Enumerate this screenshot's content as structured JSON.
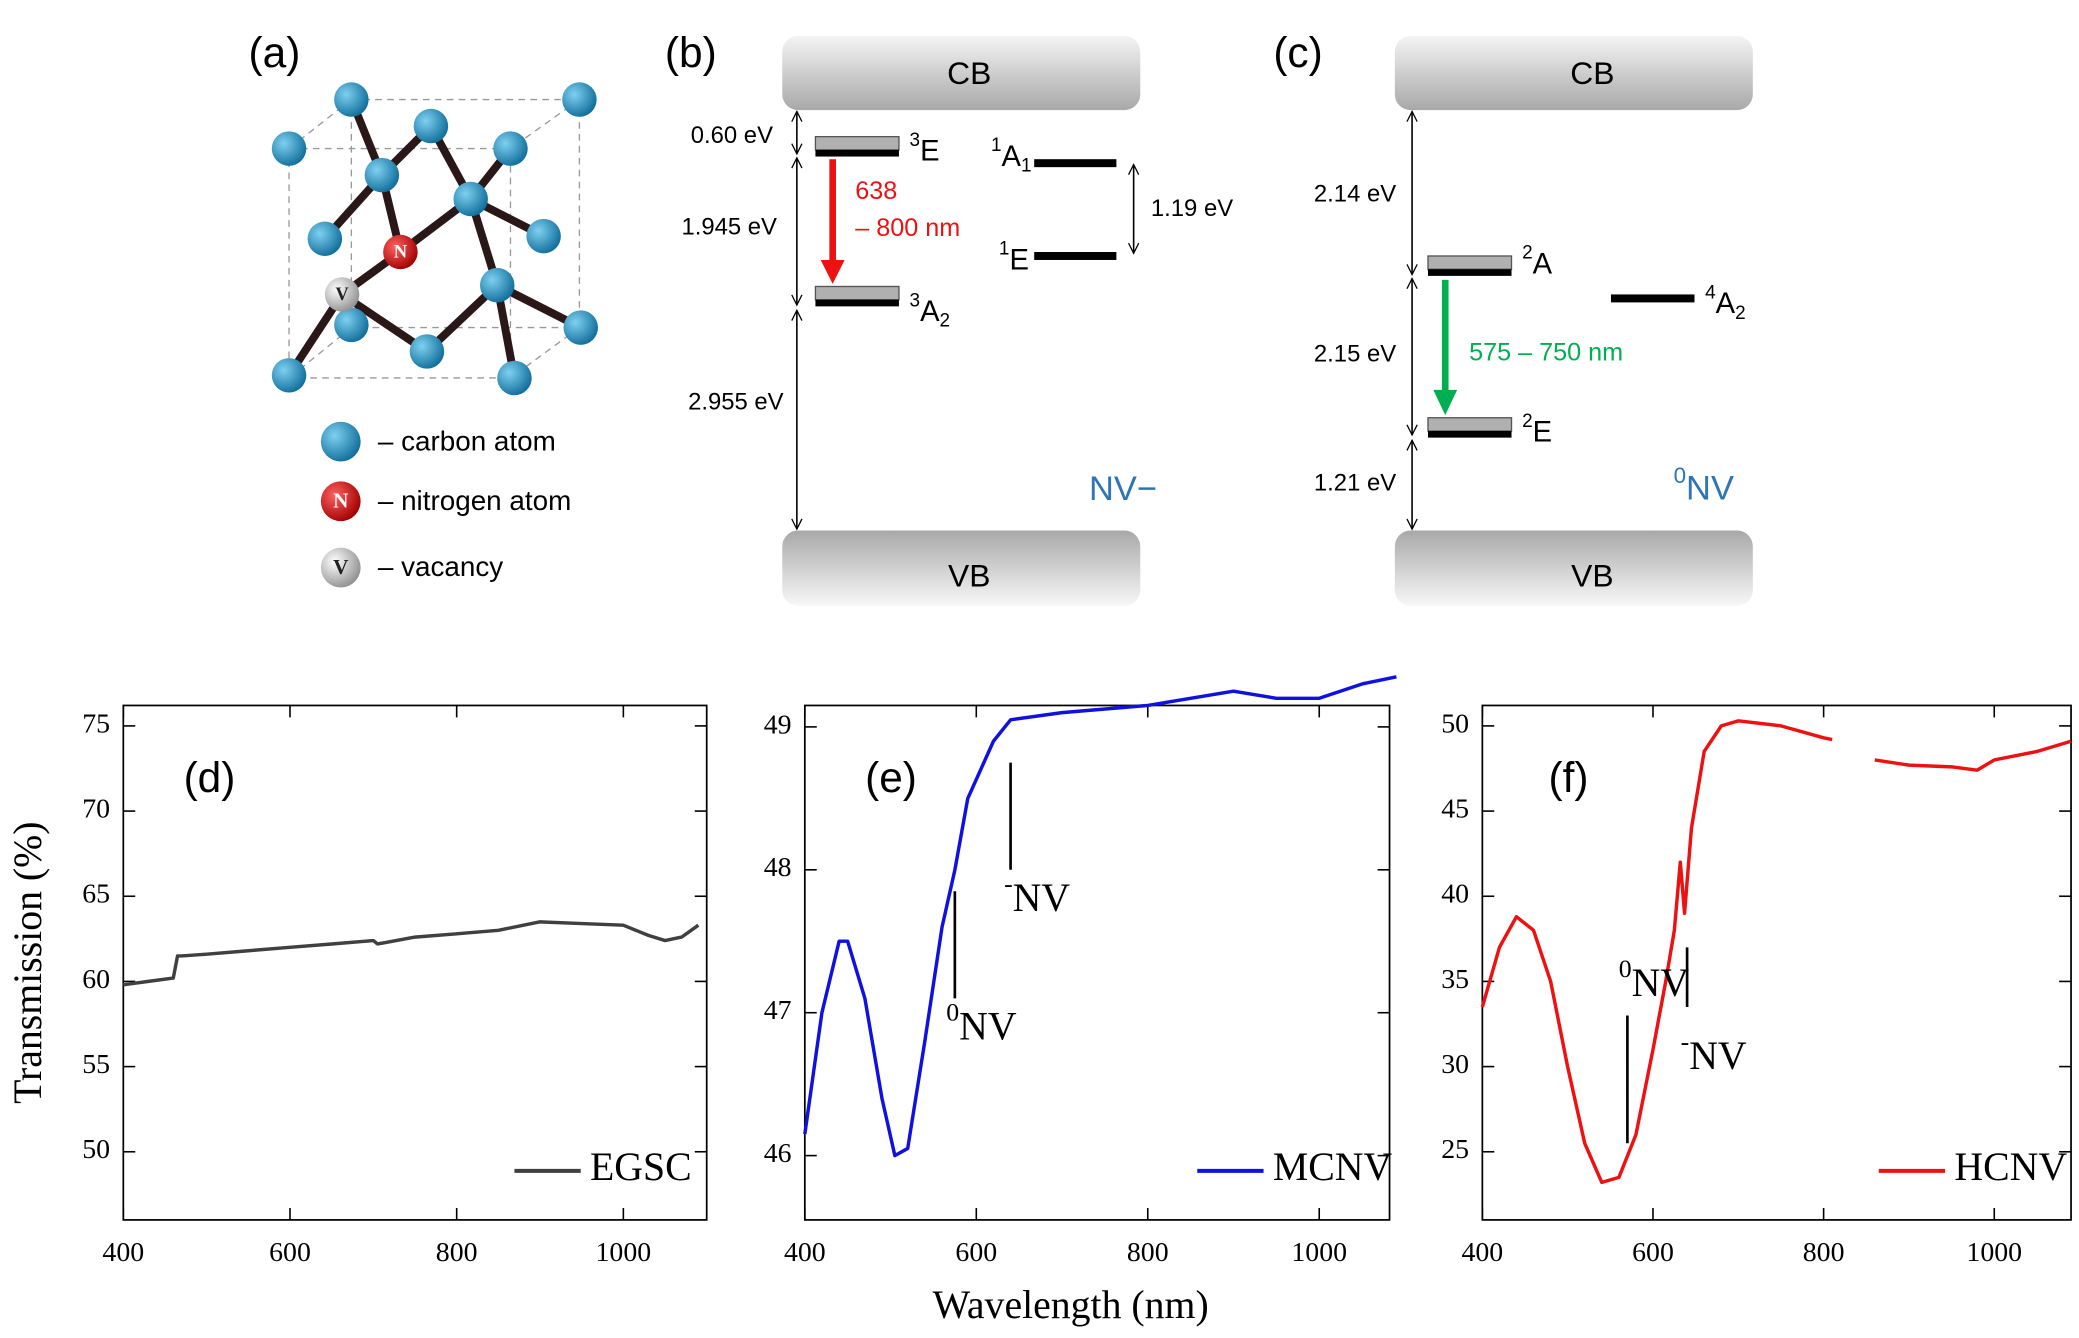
{
  "panel_a": {
    "label": "(a)",
    "atoms": {
      "nitrogen": "N",
      "vacancy": "V"
    },
    "legend": [
      "– carbon atom",
      "– nitrogen atom",
      "– vacancy"
    ]
  },
  "panel_b": {
    "label": "(b)",
    "cb": "CB",
    "vb": "VB",
    "gaps": [
      "0.60 eV",
      "1.945 eV",
      "2.955 eV"
    ],
    "transition": [
      "638",
      "– 800 nm"
    ],
    "singlet_gap": "1.19 eV",
    "levels": [
      {
        "sup": "3",
        "base": "E"
      },
      {
        "sup": "3",
        "base": "A",
        "sub": "2"
      },
      {
        "sup": "1",
        "base": "A",
        "sub": "1"
      },
      {
        "sup": "1",
        "base": "E"
      }
    ],
    "center": "NV−"
  },
  "panel_c": {
    "label": "(c)",
    "cb": "CB",
    "vb": "VB",
    "gaps": [
      "2.14 eV",
      "2.15 eV",
      "1.21 eV"
    ],
    "transition": "575 – 750 nm",
    "levels": [
      {
        "sup": "2",
        "base": "A"
      },
      {
        "sup": "4",
        "base": "A",
        "sub": "2"
      },
      {
        "sup": "2",
        "base": "E"
      }
    ],
    "center": {
      "base": "NV",
      "sup": "0"
    }
  },
  "chart_data": [
    {
      "type": "line",
      "label": "(d)",
      "ylabel": "Transmission (%)",
      "x": [
        400,
        430,
        460,
        465,
        470,
        500,
        550,
        600,
        650,
        700,
        705,
        750,
        800,
        850,
        900,
        950,
        1000,
        1030,
        1050,
        1070,
        1090
      ],
      "series": [
        {
          "name": "EGSC",
          "color": "#404040",
          "values": [
            59.8,
            60.0,
            60.2,
            61.5,
            61.5,
            61.6,
            61.8,
            62.0,
            62.2,
            62.4,
            62.2,
            62.6,
            62.8,
            63.0,
            63.5,
            63.4,
            63.3,
            62.7,
            62.4,
            62.6,
            63.3
          ]
        }
      ],
      "xlim": [
        400,
        1100
      ],
      "ylim": [
        46,
        76.2
      ],
      "xticks": [
        400,
        600,
        800,
        1000
      ],
      "yticks": [
        50,
        55,
        60,
        65,
        70,
        75
      ],
      "legend": "lower right"
    },
    {
      "type": "line",
      "label": "(e)",
      "xlabel": "Wavelength (nm)",
      "x": [
        400,
        420,
        440,
        450,
        470,
        490,
        505,
        520,
        540,
        560,
        575,
        590,
        620,
        640,
        700,
        800,
        900,
        950,
        1000,
        1050,
        1090
      ],
      "series": [
        {
          "name": "MCNV",
          "color": "#1010e0",
          "values": [
            46.15,
            47.0,
            47.5,
            47.5,
            47.1,
            46.4,
            46.0,
            46.05,
            46.8,
            47.6,
            48.0,
            48.5,
            48.9,
            49.05,
            49.1,
            49.15,
            49.25,
            49.2,
            49.2,
            49.3,
            49.35
          ]
        }
      ],
      "xlim": [
        400,
        1082
      ],
      "ylim": [
        45.55,
        49.15
      ],
      "xticks": [
        400,
        600,
        800,
        1000
      ],
      "yticks": [
        46,
        47,
        48,
        49
      ],
      "legend": "lower right",
      "annotations": [
        {
          "base": "NV",
          "sup": "0"
        },
        {
          "base": "NV",
          "sup": "-"
        }
      ]
    },
    {
      "type": "line",
      "label": "(f)",
      "x": [
        400,
        420,
        440,
        460,
        480,
        500,
        520,
        540,
        560,
        580,
        600,
        615,
        625,
        632,
        637,
        645,
        660,
        680,
        700,
        750,
        800,
        810,
        835,
        860,
        900,
        950,
        980,
        1000,
        1050,
        1090
      ],
      "series": [
        {
          "name": "HCNV",
          "color": "#ee1111",
          "values": [
            33.5,
            37,
            38.8,
            38,
            35,
            30,
            25.5,
            23.2,
            23.5,
            26,
            31,
            35,
            38,
            42,
            39,
            44,
            48.5,
            50,
            50.3,
            50,
            49.3,
            49.2,
            null,
            48,
            47.7,
            47.6,
            47.4,
            48,
            48.5,
            49.1
          ]
        }
      ],
      "xlim": [
        400,
        1090
      ],
      "ylim": [
        21,
        51.2
      ],
      "xticks": [
        400,
        600,
        800,
        1000
      ],
      "yticks": [
        25,
        30,
        35,
        40,
        45,
        50
      ],
      "legend": "lower right",
      "annotations": [
        {
          "base": "NV",
          "sup": "0"
        },
        {
          "base": "NV",
          "sup": "-"
        }
      ]
    }
  ]
}
